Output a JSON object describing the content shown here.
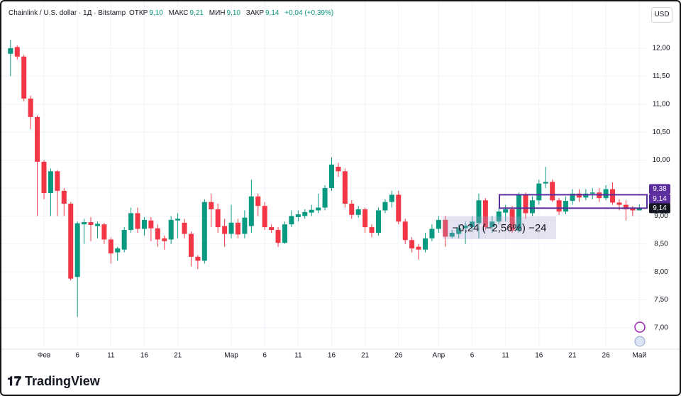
{
  "currency": "USD",
  "brand": "TradingView",
  "legend": {
    "open_label": "ОТКР",
    "open": "9,10",
    "high_label": "МАКС",
    "high": "9,21",
    "low_label": "МИН",
    "low": "9,10",
    "close_label": "ЗАКР",
    "close": "9,14",
    "change": "+0,04 (+0,39%)"
  },
  "chart_data": {
    "type": "candlestick",
    "title": "Chainlink / U.S. dollar · 1Д · Bitstamp",
    "up_color": "#089981",
    "down_color": "#f23645",
    "grid": true,
    "categories": [
      null,
      null,
      null,
      null,
      null,
      "Фев",
      null,
      null,
      null,
      null,
      "6",
      null,
      null,
      null,
      null,
      "11",
      null,
      null,
      null,
      null,
      "16",
      null,
      null,
      null,
      null,
      "21",
      null,
      null,
      null,
      null,
      null,
      null,
      null,
      "Мар",
      null,
      null,
      null,
      null,
      "6",
      null,
      null,
      null,
      null,
      "11",
      null,
      null,
      null,
      null,
      "16",
      null,
      null,
      null,
      null,
      "21",
      null,
      null,
      null,
      null,
      "26",
      null,
      null,
      null,
      null,
      null,
      "Апр",
      null,
      null,
      null,
      null,
      "6",
      null,
      null,
      null,
      null,
      "11",
      null,
      null,
      null,
      null,
      "16",
      null,
      null,
      null,
      null,
      "21",
      null,
      null,
      null,
      null,
      "26",
      null,
      null,
      null,
      null,
      "Май"
    ],
    "open": [
      11.9,
      12.02,
      11.85,
      11.1,
      10.77,
      9.97,
      9.41,
      9.8,
      9.45,
      9.22,
      7.91,
      8.85,
      8.89,
      8.82,
      8.85,
      8.58,
      8.35,
      8.4,
      8.75,
      9.05,
      8.77,
      8.92,
      8.78,
      8.6,
      8.58,
      8.92,
      8.88,
      8.68,
      8.27,
      8.2,
      9.25,
      9.12,
      8.82,
      8.68,
      8.88,
      8.68,
      8.82,
      9.35,
      9.18,
      8.8,
      8.75,
      8.52,
      8.85,
      8.98,
      9.0,
      9.06,
      9.1,
      9.15,
      9.5,
      9.88,
      9.8,
      9.22,
      9.02,
      9.12,
      8.8,
      8.7,
      9.1,
      9.25,
      9.38,
      8.9,
      8.57,
      8.45,
      8.4,
      8.6,
      8.77,
      8.93,
      8.63,
      8.68,
      8.78,
      8.8,
      8.87,
      9.28,
      8.8,
      8.9,
      9.06,
      9.12,
      8.74,
      9.38,
      9.05,
      9.28,
      9.58,
      9.61,
      9.28,
      9.08,
      9.27,
      9.4,
      9.33,
      9.4,
      9.42,
      9.32,
      9.48,
      9.24,
      9.2,
      9.14,
      9.1
    ],
    "high": [
      12.15,
      12.05,
      11.88,
      11.15,
      10.8,
      10.0,
      9.85,
      9.82,
      9.5,
      9.25,
      8.9,
      8.95,
      8.98,
      8.9,
      8.88,
      8.62,
      8.45,
      8.8,
      9.15,
      9.15,
      8.98,
      8.98,
      8.85,
      8.65,
      9.0,
      9.05,
      8.95,
      8.72,
      8.3,
      9.3,
      9.4,
      9.22,
      8.95,
      9.2,
      8.95,
      9.1,
      9.65,
      9.4,
      9.25,
      8.85,
      8.8,
      8.9,
      9.1,
      9.1,
      9.12,
      9.2,
      9.4,
      9.55,
      10.05,
      9.95,
      9.85,
      9.28,
      9.18,
      9.15,
      8.85,
      9.15,
      9.3,
      9.45,
      9.45,
      8.95,
      8.62,
      8.5,
      8.7,
      8.85,
      9.0,
      9.0,
      8.75,
      8.85,
      8.9,
      9.0,
      9.4,
      9.32,
      9.0,
      9.15,
      9.2,
      9.18,
      9.42,
      9.42,
      9.35,
      9.65,
      9.88,
      9.65,
      9.32,
      9.35,
      9.48,
      9.48,
      9.48,
      9.5,
      9.5,
      9.55,
      9.6,
      9.3,
      9.28,
      9.18,
      9.21
    ],
    "low": [
      11.5,
      11.8,
      11.05,
      10.55,
      9.0,
      9.3,
      9.0,
      9.0,
      9.0,
      7.85,
      7.2,
      8.5,
      8.55,
      8.6,
      8.5,
      8.15,
      8.2,
      8.35,
      8.7,
      8.7,
      8.65,
      8.55,
      8.45,
      8.4,
      8.5,
      8.6,
      8.6,
      8.1,
      8.05,
      8.15,
      8.8,
      8.7,
      8.45,
      8.6,
      8.6,
      8.6,
      8.7,
      9.0,
      8.75,
      8.7,
      8.45,
      8.5,
      8.8,
      8.9,
      8.95,
      9.0,
      9.05,
      9.1,
      9.45,
      9.7,
      9.15,
      8.95,
      8.97,
      8.7,
      8.62,
      8.65,
      9.05,
      9.15,
      8.85,
      8.5,
      8.35,
      8.22,
      8.35,
      8.55,
      8.7,
      8.45,
      8.6,
      8.6,
      8.5,
      8.75,
      8.6,
      8.75,
      8.7,
      8.85,
      8.9,
      8.7,
      8.7,
      8.95,
      9.0,
      9.2,
      9.5,
      9.25,
      9.02,
      9.03,
      9.2,
      9.25,
      9.28,
      9.3,
      9.25,
      9.28,
      9.2,
      9.1,
      8.92,
      9.0,
      9.1
    ],
    "close": [
      12.0,
      11.85,
      11.1,
      10.77,
      9.97,
      9.41,
      9.8,
      9.45,
      9.22,
      7.88,
      8.87,
      8.89,
      8.84,
      8.86,
      8.58,
      8.33,
      8.42,
      8.75,
      9.05,
      8.77,
      8.93,
      8.78,
      8.58,
      8.55,
      8.93,
      8.95,
      8.68,
      8.27,
      8.2,
      9.25,
      9.12,
      8.8,
      8.68,
      8.88,
      8.67,
      8.97,
      9.35,
      9.18,
      8.8,
      8.75,
      8.52,
      8.85,
      9.0,
      9.03,
      9.07,
      9.11,
      9.15,
      9.5,
      9.92,
      9.8,
      9.22,
      9.02,
      9.12,
      8.8,
      8.7,
      9.1,
      9.25,
      9.38,
      8.9,
      8.57,
      8.42,
      8.4,
      8.6,
      8.77,
      8.93,
      8.63,
      8.7,
      8.78,
      8.83,
      8.9,
      9.28,
      8.8,
      8.9,
      9.08,
      9.12,
      8.74,
      9.38,
      9.05,
      9.28,
      9.58,
      9.61,
      9.28,
      9.08,
      9.27,
      9.4,
      9.33,
      9.4,
      9.42,
      9.32,
      9.48,
      9.24,
      9.2,
      9.12,
      9.1,
      9.14
    ],
    "ylim": [
      6.67,
      12.76
    ],
    "yticks": [
      {
        "value": 7,
        "label": "7,00"
      },
      {
        "value": 7.5,
        "label": "7,50"
      },
      {
        "value": 8,
        "label": "8,00"
      },
      {
        "value": 8.5,
        "label": "8,50"
      },
      {
        "value": 9,
        "label": "9,00"
      },
      {
        "value": 9.5,
        "label": "9,50"
      },
      {
        "value": 10,
        "label": "10,00"
      },
      {
        "value": 10.5,
        "label": "10,50"
      },
      {
        "value": 11,
        "label": "11,00"
      },
      {
        "value": 11.5,
        "label": "11,50"
      },
      {
        "value": 12,
        "label": "12,00"
      }
    ],
    "range_box": {
      "top": {
        "value": 9.38,
        "label": "9,38"
      },
      "bottom": {
        "value": 9.14,
        "label": "9,14"
      },
      "color": "#5b2d9e"
    },
    "last_price": {
      "value": 9.14,
      "label": "9,14"
    },
    "measure_label": "−0,24 (−2,56%) −24"
  }
}
